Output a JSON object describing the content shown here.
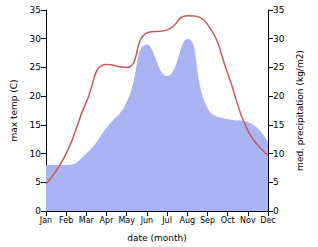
{
  "chart_data": {
    "type": "line",
    "categories": [
      "Jan",
      "Feb",
      "Mar",
      "Apr",
      "May",
      "Jun",
      "Jul",
      "Aug",
      "Sep",
      "Oct",
      "Nov",
      "Dec"
    ],
    "x_label": "date (month)",
    "y_label": "max temp (C)",
    "y2_label": "med. precipitation (kg/m2)",
    "ylim": [
      0,
      35
    ],
    "yticks": [
      0,
      5,
      10,
      15,
      20,
      25,
      30,
      35
    ],
    "y2lim": [
      0,
      35
    ],
    "y2ticks": [
      0,
      5,
      10,
      15,
      20,
      25,
      30,
      35
    ],
    "grid": false,
    "series": [
      {
        "name": "med. precipitation",
        "type": "area",
        "axis": "y2",
        "color": "#aab4f2",
        "values": [
          8,
          8,
          10,
          14.5,
          19,
          29,
          23.5,
          30,
          18,
          16,
          15.5,
          12
        ]
      },
      {
        "name": "max temp",
        "type": "line",
        "axis": "y",
        "color": "#c85a5a",
        "values": [
          4.7,
          10,
          19,
          25.5,
          25,
          31,
          31.5,
          34,
          32.5,
          24,
          14,
          9.7
        ]
      }
    ]
  }
}
